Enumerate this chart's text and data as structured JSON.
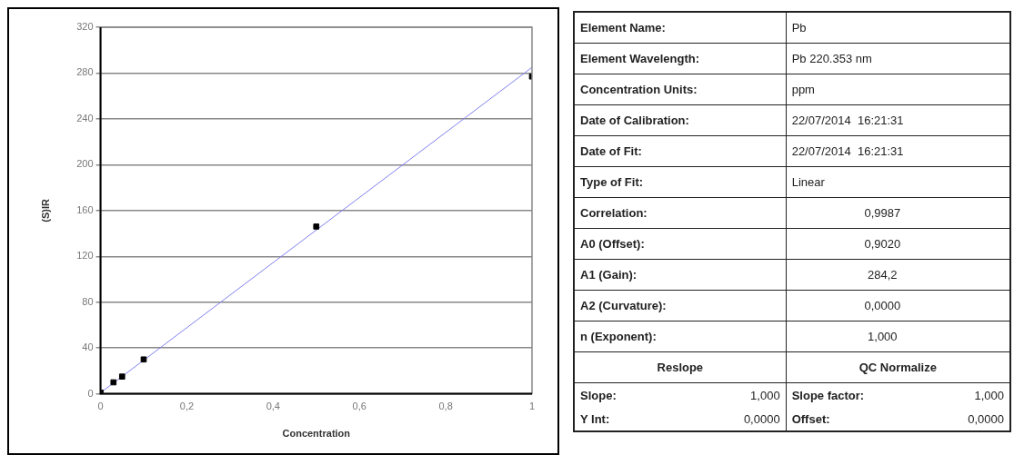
{
  "chart_data": [
    {
      "type": "scatter",
      "xlabel": "Concentration",
      "ylabel": "(S)IR",
      "x": [
        0,
        0.03,
        0.05,
        0.1,
        0.5,
        1
      ],
      "series": [
        {
          "type": "scatter",
          "color": "#000000",
          "marker": "square",
          "values": [
            1,
            10,
            15,
            30,
            146,
            277
          ]
        },
        {
          "type": "line",
          "color": "#8080f0",
          "x": [
            0,
            1
          ],
          "values": [
            0.9,
            285
          ],
          "marker": "none"
        }
      ],
      "xlim": [
        0,
        1
      ],
      "xticks": [
        0,
        {
          "value": 0.2,
          "label": "0,2"
        },
        {
          "value": 0.4,
          "label": "0,4"
        },
        {
          "value": 0.6,
          "label": "0,6"
        },
        {
          "value": 0.8,
          "label": "0,8"
        },
        1
      ],
      "ylim": [
        0,
        320
      ],
      "yticks": [
        0,
        40,
        80,
        120,
        160,
        200,
        240,
        280,
        320
      ],
      "grid": "y",
      "legend": false
    },
    {
      "type": "other",
      "annotations": [
        "Element Name:",
        "Pb",
        "Element Wavelength:",
        "Pb 220.353 nm",
        "Concentration Units:",
        "ppm",
        "Date of Calibration:",
        "22/07/2014  16:21:31",
        "Date of Fit:",
        "22/07/2014  16:21:31",
        "Type of Fit:",
        "Linear",
        "Correlation:",
        "0,9987",
        "A0 (Offset):",
        "0,9020",
        "A1 (Gain):",
        "284,2",
        "A2 (Curvature):",
        "0,0000",
        "n (Exponent):",
        "1,000",
        "Reslope",
        "QC Normalize",
        "Slope:",
        "1,000",
        "Slope factor:",
        "1,000",
        "Y Int:",
        "0,0000",
        "Offset:",
        "0,0000"
      ]
    }
  ]
}
